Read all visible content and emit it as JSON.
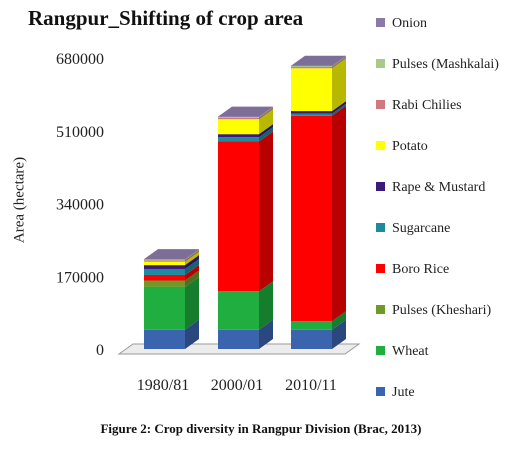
{
  "chart_data": {
    "type": "bar",
    "stacked": true,
    "three_d": true,
    "title": "Rangpur_Shifting of crop area",
    "ylabel": "Area (hectare)",
    "xlabel": "",
    "ylim": [
      0,
      680000
    ],
    "yticks": [
      0,
      170000,
      340000,
      510000,
      680000
    ],
    "ytick_labels": [
      "0",
      "170000",
      "340000",
      "510000",
      "680000"
    ],
    "categories": [
      "1980/81",
      "2000/01",
      "2010/11"
    ],
    "legend_position": "right",
    "series": [
      {
        "name": "Jute",
        "color": "#3a64ad",
        "values": [
          45000,
          45000,
          45000
        ]
      },
      {
        "name": "Wheat",
        "color": "#1fae3f",
        "values": [
          100000,
          90000,
          20000
        ]
      },
      {
        "name": "Pulses (Kheshari)",
        "color": "#6f9a2a",
        "values": [
          15000,
          0,
          0
        ]
      },
      {
        "name": "Boro Rice",
        "color": "#ff0000",
        "values": [
          13000,
          350000,
          480000
        ]
      },
      {
        "name": "Sugarcane",
        "color": "#1e8a9e",
        "values": [
          14000,
          10000,
          5000
        ]
      },
      {
        "name": "Rape & Mustard",
        "color": "#3a1a7a",
        "values": [
          9000,
          7000,
          6000
        ]
      },
      {
        "name": "Potato",
        "color": "#ffff00",
        "values": [
          8000,
          35000,
          100000
        ]
      },
      {
        "name": "Rabi Chilies",
        "color": "#d07a80",
        "values": [
          3000,
          3000,
          3000
        ]
      },
      {
        "name": "Pulses (Mashkalai)",
        "color": "#a9c98a",
        "values": [
          2000,
          2000,
          2000
        ]
      },
      {
        "name": "Onion",
        "color": "#8a7aa8",
        "values": [
          1000,
          1000,
          1000
        ]
      }
    ]
  },
  "caption": "Figure 2: Crop diversity in Rangpur Division (Brac, 2013)"
}
